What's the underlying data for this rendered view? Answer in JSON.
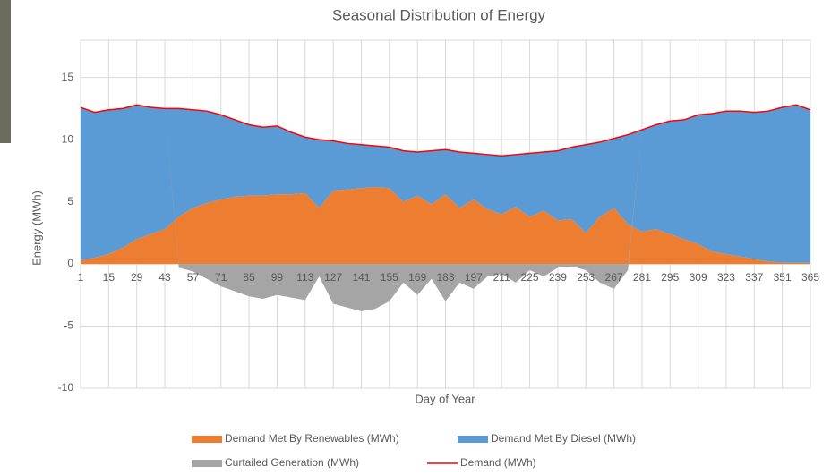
{
  "chart_data": {
    "type": "area",
    "title": "Seasonal Distribution of Energy",
    "x_label": "Day of Year",
    "y_label": "Energy (MWh)",
    "x": [
      1,
      8,
      15,
      22,
      29,
      36,
      43,
      50,
      57,
      64,
      71,
      78,
      85,
      92,
      99,
      106,
      113,
      120,
      127,
      134,
      141,
      148,
      155,
      162,
      169,
      176,
      183,
      190,
      197,
      204,
      211,
      218,
      225,
      232,
      239,
      246,
      253,
      260,
      267,
      274,
      281,
      288,
      295,
      302,
      309,
      316,
      323,
      330,
      337,
      344,
      351,
      358,
      365
    ],
    "series": [
      {
        "name": "Demand Met By Renewables (MWh)",
        "color": "#ed7d31",
        "kind": "area",
        "values": [
          0.3,
          0.5,
          0.8,
          1.3,
          2.0,
          2.4,
          2.8,
          3.8,
          4.5,
          4.9,
          5.2,
          5.4,
          5.5,
          5.5,
          5.6,
          5.6,
          5.7,
          4.5,
          5.9,
          6.0,
          6.1,
          6.2,
          6.1,
          5.0,
          5.5,
          4.8,
          5.6,
          4.5,
          5.2,
          4.4,
          4.0,
          4.6,
          3.8,
          4.3,
          3.5,
          3.6,
          2.5,
          3.8,
          4.5,
          3.2,
          2.6,
          2.8,
          2.4,
          2.0,
          1.6,
          1.0,
          0.8,
          0.6,
          0.4,
          0.2,
          0.1,
          0.1,
          0.1
        ]
      },
      {
        "name": "Demand Met By Diesel (MWh)",
        "color": "#5b9bd5",
        "kind": "area",
        "values": [
          12.3,
          11.7,
          11.6,
          11.2,
          10.8,
          10.2,
          9.7,
          8.7,
          7.9,
          7.4,
          6.8,
          6.2,
          5.7,
          5.5,
          5.5,
          5.0,
          4.5,
          5.5,
          4.0,
          3.7,
          3.5,
          3.3,
          3.3,
          4.1,
          3.5,
          4.3,
          3.6,
          4.5,
          3.7,
          4.4,
          4.7,
          4.2,
          5.1,
          4.7,
          5.6,
          5.8,
          7.1,
          6.0,
          5.6,
          7.2,
          8.2,
          8.4,
          9.1,
          9.6,
          10.4,
          11.1,
          11.5,
          11.7,
          11.8,
          12.1,
          12.5,
          12.7,
          12.3
        ]
      },
      {
        "name": "Curtailed Generation (MWh)",
        "color": "#a5a5a5",
        "kind": "area",
        "values": [
          0,
          0,
          0,
          0,
          0,
          0,
          0,
          -0.3,
          -0.6,
          -1.2,
          -1.8,
          -2.2,
          -2.6,
          -2.8,
          -2.5,
          -2.7,
          -2.9,
          -1.0,
          -3.2,
          -3.5,
          -3.8,
          -3.6,
          -3.0,
          -1.5,
          -2.5,
          -1.2,
          -3.0,
          -1.5,
          -2.0,
          -1.0,
          -0.8,
          -1.5,
          -0.5,
          -1.0,
          -0.3,
          -0.2,
          -0.5,
          -1.5,
          -2.0,
          -0.5,
          0,
          0,
          0,
          0,
          0,
          0,
          0,
          0,
          0,
          0,
          0,
          0,
          0
        ]
      },
      {
        "name": "Demand (MWh)",
        "color": "#ff0000",
        "kind": "line",
        "values": [
          12.6,
          12.2,
          12.4,
          12.5,
          12.8,
          12.6,
          12.5,
          12.5,
          12.4,
          12.3,
          12.0,
          11.6,
          11.2,
          11.0,
          11.1,
          10.6,
          10.2,
          10.0,
          9.9,
          9.7,
          9.6,
          9.5,
          9.4,
          9.1,
          9.0,
          9.1,
          9.2,
          9.0,
          8.9,
          8.8,
          8.7,
          8.8,
          8.9,
          9.0,
          9.1,
          9.4,
          9.6,
          9.8,
          10.1,
          10.4,
          10.8,
          11.2,
          11.5,
          11.6,
          12.0,
          12.1,
          12.3,
          12.3,
          12.2,
          12.3,
          12.6,
          12.8,
          12.4
        ]
      }
    ],
    "xlim": [
      1,
      365
    ],
    "xticks": [
      1,
      15,
      29,
      43,
      57,
      71,
      85,
      99,
      113,
      127,
      141,
      155,
      169,
      183,
      197,
      211,
      225,
      239,
      253,
      267,
      281,
      295,
      309,
      323,
      337,
      351,
      365
    ],
    "ylim": [
      -10,
      18
    ],
    "yticks": [
      -10,
      -5,
      0,
      5,
      10,
      15
    ],
    "grid": true
  }
}
